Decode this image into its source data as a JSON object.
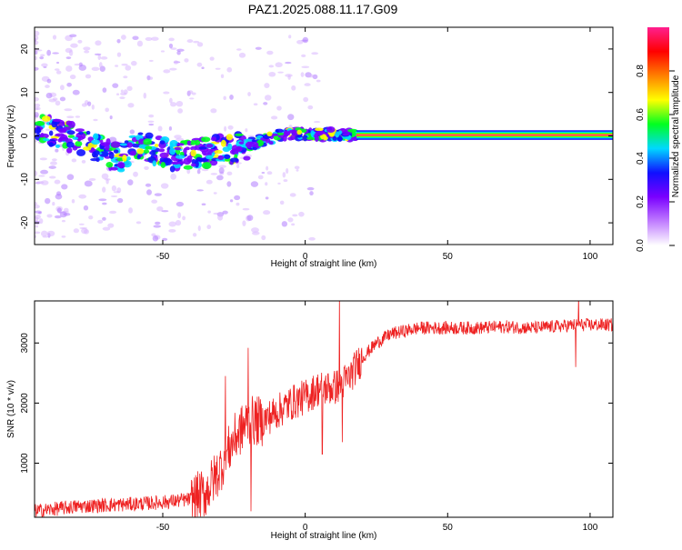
{
  "figure_title": "PAZ1.2025.088.11.17.G09",
  "chart_data": [
    {
      "type": "heatmap",
      "title": "",
      "xlabel": "Height of straight line (km)",
      "ylabel": "Frequency (Hz)",
      "xlim": [
        -95,
        108
      ],
      "ylim": [
        -25,
        25
      ],
      "xticks": [
        -50,
        0,
        50,
        100
      ],
      "yticks": [
        -20,
        -10,
        0,
        10,
        20
      ],
      "colorbar": {
        "label": "Normalized spectral amplitude",
        "range": [
          0,
          1
        ],
        "ticks": [
          0.0,
          0.2,
          0.4,
          0.6,
          0.8
        ],
        "colormap": [
          "#ffffff",
          "#c07cff",
          "#7a00ff",
          "#1010ff",
          "#00d8ff",
          "#00ff20",
          "#ffff00",
          "#ff8000",
          "#ff0000",
          "#ff1f8f"
        ]
      },
      "ridge": {
        "x": [
          -92,
          -85,
          -80,
          -75,
          -70,
          -65,
          -60,
          -55,
          -50,
          -45,
          -40,
          -35,
          -30,
          -25,
          -20,
          -15,
          -10,
          -5,
          0,
          5,
          10,
          15,
          20,
          40,
          60,
          80,
          100,
          108
        ],
        "y": [
          1.5,
          0.5,
          -1.0,
          -2.5,
          -4.0,
          -5.0,
          -2.0,
          -3.0,
          -3.5,
          -5.0,
          -4.0,
          -4.0,
          -3.0,
          -3.0,
          -2.0,
          -1.0,
          0.0,
          0.5,
          0.5,
          0.3,
          0.5,
          0.2,
          0.2,
          0.2,
          0.2,
          0.2,
          0.2,
          0.2
        ]
      }
    },
    {
      "type": "line",
      "title": "",
      "xlabel": "Height of straight line (km)",
      "ylabel": "SNR (10 * v/v)",
      "xlim": [
        -95,
        108
      ],
      "ylim": [
        100,
        3700
      ],
      "xticks": [
        -50,
        0,
        50,
        100
      ],
      "yticks": [
        1000,
        2000,
        3000
      ],
      "color": "#ee2222",
      "trend": {
        "x": [
          -95,
          -80,
          -60,
          -50,
          -40,
          -35,
          -30,
          -25,
          -20,
          -15,
          -10,
          -5,
          0,
          5,
          10,
          15,
          20,
          25,
          30,
          40,
          50,
          60,
          70,
          80,
          90,
          95,
          100,
          108
        ],
        "y": [
          200,
          280,
          320,
          350,
          400,
          500,
          900,
          1400,
          1700,
          1700,
          1850,
          2000,
          2100,
          2250,
          2250,
          2400,
          2750,
          3000,
          3150,
          3250,
          3250,
          3250,
          3270,
          3250,
          3280,
          3300,
          3300,
          3300
        ]
      },
      "spikes": [
        {
          "x": -28,
          "y": 2450
        },
        {
          "x": -20,
          "y": 2920
        },
        {
          "x": -19,
          "y": 200
        },
        {
          "x": 6,
          "y": 1150
        },
        {
          "x": 12,
          "y": 3820
        },
        {
          "x": 13,
          "y": 1350
        },
        {
          "x": 95,
          "y": 2600
        },
        {
          "x": 96,
          "y": 3800
        }
      ]
    }
  ]
}
